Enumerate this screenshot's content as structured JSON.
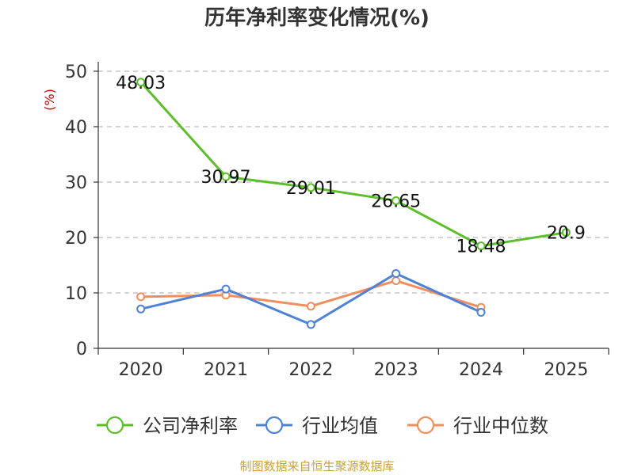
{
  "chart_data": {
    "type": "line",
    "title": "历年净利率变化情况(%)",
    "ylabel": "(%)",
    "xlabel": "",
    "categories": [
      "2020",
      "2021",
      "2022",
      "2023",
      "2024",
      "2025"
    ],
    "ylim": [
      0,
      50
    ],
    "yticks": [
      0,
      10,
      20,
      30,
      40,
      50
    ],
    "grid": true,
    "legend_position": "bottom",
    "series": [
      {
        "name": "公司净利率",
        "values": [
          48.03,
          30.97,
          29.01,
          26.65,
          18.48,
          20.9
        ],
        "labels": [
          "48.03",
          "30.97",
          "29.01",
          "26.65",
          "18.48",
          "20.9"
        ],
        "color": "#5cbf2a"
      },
      {
        "name": "行业均值",
        "values": [
          7.1,
          10.7,
          4.3,
          13.5,
          6.5,
          null
        ],
        "color": "#4f81d8"
      },
      {
        "name": "行业中位数",
        "values": [
          9.3,
          9.6,
          7.6,
          12.2,
          7.4,
          null
        ],
        "color": "#f28e5b"
      }
    ],
    "source": "制图数据来自恒生聚源数据库"
  }
}
